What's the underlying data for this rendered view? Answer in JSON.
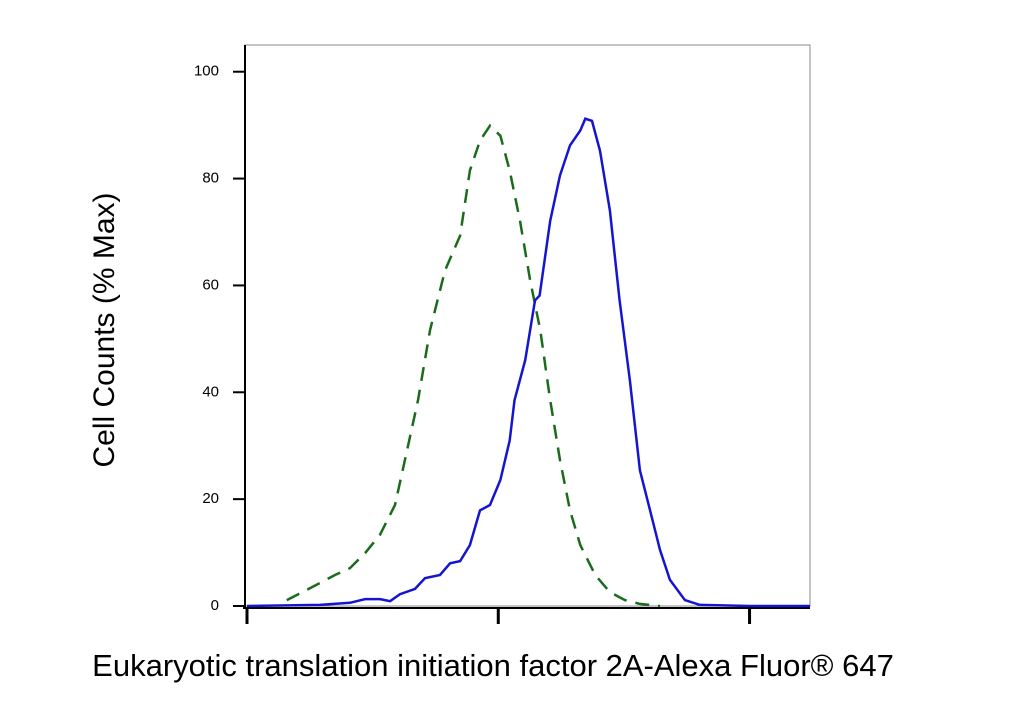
{
  "chart_data": {
    "type": "line",
    "y_label": "Cell Counts (% Max)",
    "x_label": "Eukaryotic translation initiation factor 2A-Alexa Fluor® 647",
    "x_scale": "log",
    "xlim": [
      1,
      174
    ],
    "xticks": [
      1,
      10,
      100
    ],
    "ylim": [
      0,
      105
    ],
    "yticks": [
      0,
      20,
      40,
      60,
      80,
      100
    ],
    "series": [
      {
        "color": "#1a6b1a",
        "style": "dashed",
        "x": [
          1.44,
          1.63,
          1.95,
          2.24,
          2.57,
          2.95,
          3.38,
          3.88,
          4.25,
          4.79,
          5.35,
          6.14,
          7.05,
          7.71,
          8.46,
          9.27,
          10.2,
          11.1,
          12.2,
          13.4,
          14.7,
          16.1,
          17.6,
          19.3,
          21.2,
          24.3,
          27.8,
          31.9,
          36.6,
          44.0
        ],
        "values": [
          1.1,
          2.4,
          4.3,
          5.8,
          7.1,
          9.9,
          13.3,
          18.9,
          27.3,
          38.5,
          51.6,
          62.8,
          69.3,
          81.5,
          87.1,
          89.9,
          88.0,
          81.5,
          72.1,
          60.9,
          51.6,
          38.5,
          27.3,
          17.9,
          11.4,
          5.8,
          2.6,
          1.1,
          0.4,
          0
        ]
      },
      {
        "color": "#1515d0",
        "style": "solid",
        "x": [
          1.0,
          1.95,
          2.57,
          2.95,
          3.38,
          3.71,
          4.06,
          4.66,
          5.11,
          5.86,
          6.43,
          7.05,
          7.71,
          8.46,
          9.27,
          10.2,
          11.1,
          11.6,
          12.8,
          14.0,
          14.6,
          16.1,
          17.6,
          19.3,
          21.2,
          22.2,
          23.6,
          25.4,
          27.8,
          30.4,
          33.4,
          36.6,
          40.1,
          44.0,
          48.2,
          55.3,
          63.4,
          100.5,
          174
        ],
        "values": [
          0,
          0.2,
          0.6,
          1.3,
          1.3,
          0.9,
          2.2,
          3.2,
          5.2,
          5.8,
          8.0,
          8.4,
          11.4,
          17.9,
          18.9,
          23.6,
          31.0,
          38.5,
          46.0,
          57.2,
          58.1,
          72.1,
          80.6,
          86.2,
          89.0,
          91.2,
          90.8,
          85.2,
          74.0,
          57.2,
          42.2,
          25.4,
          18.1,
          10.5,
          4.9,
          1.1,
          0.2,
          0,
          0
        ]
      }
    ]
  }
}
